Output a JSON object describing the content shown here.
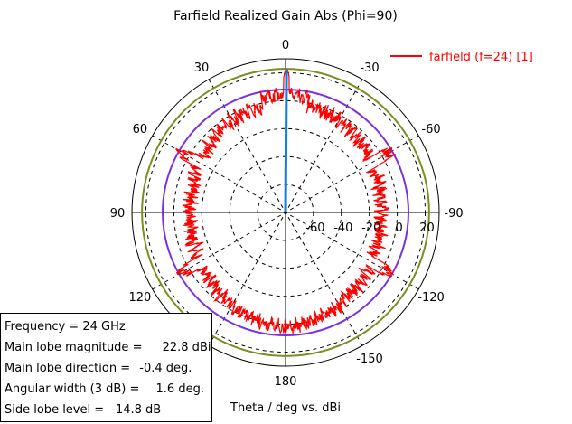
{
  "chart_data": {
    "type": "polar",
    "title": "Farfield Realized Gain Abs (Phi=90)",
    "axis_caption": "Theta / deg vs. dBi",
    "angle_ticks": [
      "0",
      "30",
      "60",
      "90",
      "120",
      "150",
      "180",
      "-30",
      "-60",
      "-90",
      "-120",
      "-150"
    ],
    "radial_ticks": [
      "-60",
      "-40",
      "-20",
      "0",
      "20"
    ],
    "radial_range": [
      -80,
      30
    ],
    "series": [
      {
        "name": "farfield (f=24) [1]",
        "color": "#ff0000",
        "main_lobe_gain_dbi": 22.8,
        "main_lobe_direction_deg": -0.4,
        "angular_width_3db_deg": 1.6,
        "side_lobe_level_db": -14.8
      }
    ],
    "reference_circles": [
      {
        "value": 8.0,
        "color": "#7b2fe0"
      },
      {
        "value": 22.8,
        "color": "#7f8c1f"
      }
    ],
    "main_lobe_marker_color": "#0a7de8",
    "grid": true,
    "legend_position": "top-right"
  },
  "info": {
    "frequency_label": "Frequency =",
    "frequency_value": "24 GHz",
    "main_lobe_mag_label": "Main lobe magnitude =",
    "main_lobe_mag_value": "22.8 dBi",
    "main_lobe_dir_label": "Main lobe direction =",
    "main_lobe_dir_value": "-0.4 deg.",
    "angular_width_label": "Angular width (3 dB) =",
    "angular_width_value": "1.6 deg.",
    "side_lobe_label": "Side lobe level =",
    "side_lobe_value": "-14.8 dB"
  }
}
